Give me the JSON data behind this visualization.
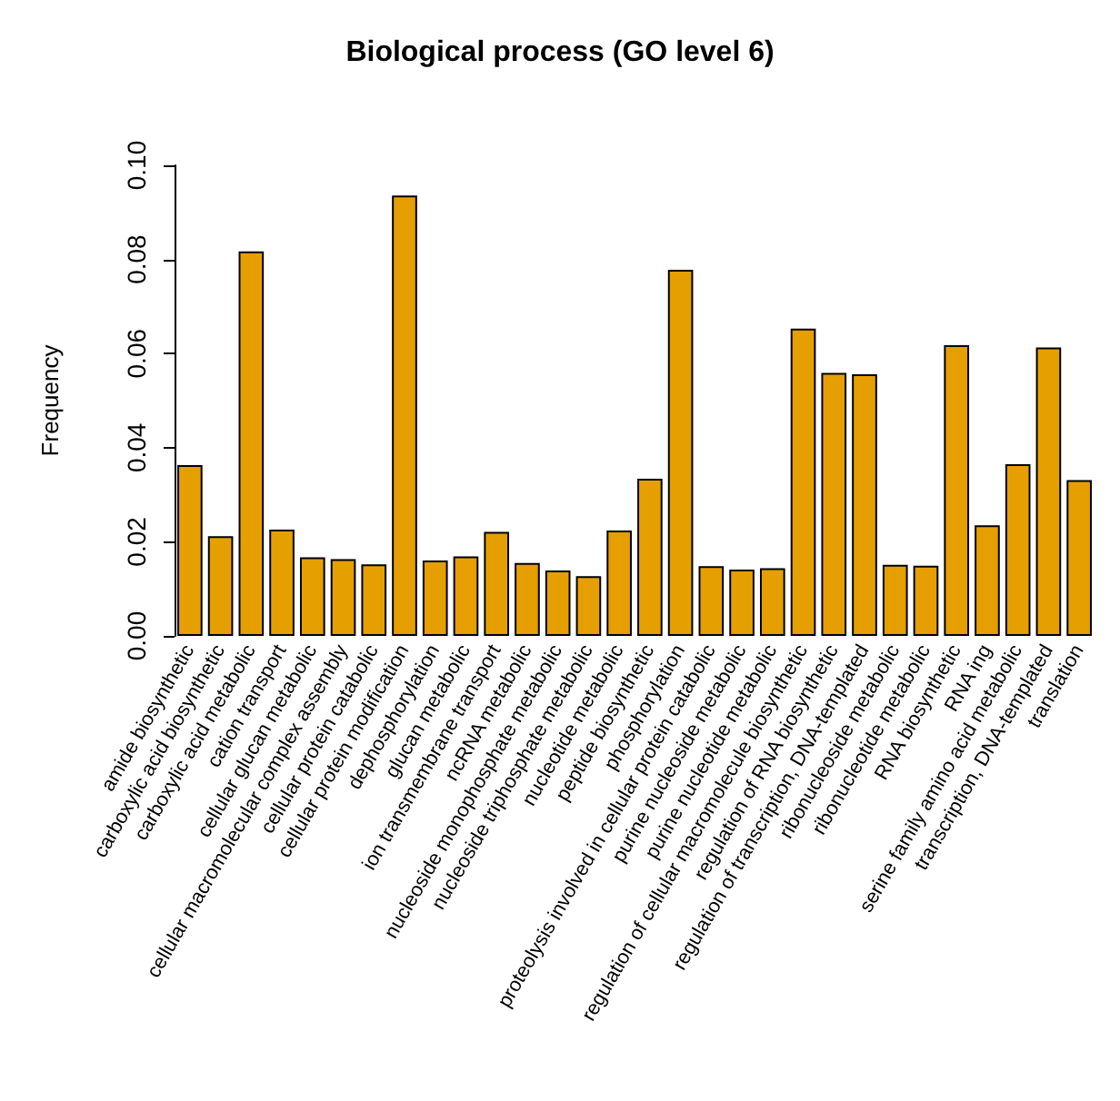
{
  "chart_data": {
    "type": "bar",
    "title": "Biological process (GO level 6)",
    "ylabel": "Frequency",
    "categories": [
      "amide biosynthetic",
      "carboxylic acid biosynthetic",
      "carboxylic acid metabolic",
      "cation transport",
      "cellular glucan metabolic",
      "cellular macromolecular complex assembly",
      "cellular protein catabolic",
      "cellular protein modification",
      "dephosphorylation",
      "glucan metabolic",
      "ion transmembrane transport",
      "ncRNA metabolic",
      "nucleoside monophosphate metabolic",
      "nucleoside triphosphate metabolic",
      "nucleotide metabolic",
      "peptide biosynthetic",
      "phosphorylation",
      "proteolysis involved in cellular protein catabolic",
      "purine nucleoside metabolic",
      "purine nucleotide metabolic",
      "regulation of cellular macromolecule biosynthetic",
      "regulation of RNA biosynthetic",
      "regulation of transcription, DNA-templated",
      "ribonucleoside metabolic",
      "ribonucleotide metabolic",
      "RNA biosynthetic",
      "RNA ing",
      "serine family amino acid metabolic",
      "transcription, DNA-templated",
      "translation"
    ],
    "values": [
      0.0363,
      0.0212,
      0.0817,
      0.0226,
      0.0167,
      0.0163,
      0.0152,
      0.0936,
      0.016,
      0.0169,
      0.0221,
      0.0155,
      0.0139,
      0.0127,
      0.0224,
      0.0334,
      0.0778,
      0.0148,
      0.0141,
      0.0144,
      0.0653,
      0.0559,
      0.0556,
      0.0151,
      0.0149,
      0.0618,
      0.0235,
      0.0365,
      0.0613,
      0.0331
    ],
    "color": "#e69f00",
    "ylim": [
      0,
      0.1
    ],
    "yticks": [
      {
        "value": 0,
        "label": "0.00"
      },
      {
        "value": 0.02,
        "label": "0.02"
      },
      {
        "value": 0.04,
        "label": "0.04"
      },
      {
        "value": 0.06,
        "label": "0.06"
      },
      {
        "value": 0.08,
        "label": "0.08"
      },
      {
        "value": 0.1,
        "label": "0.10"
      }
    ]
  }
}
